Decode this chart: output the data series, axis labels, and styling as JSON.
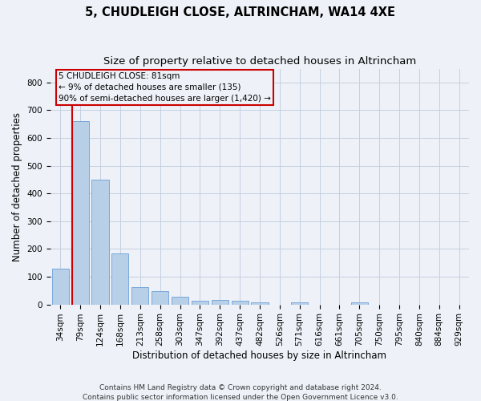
{
  "title": "5, CHUDLEIGH CLOSE, ALTRINCHAM, WA14 4XE",
  "subtitle": "Size of property relative to detached houses in Altrincham",
  "xlabel": "Distribution of detached houses by size in Altrincham",
  "ylabel": "Number of detached properties",
  "categories": [
    "34sqm",
    "79sqm",
    "124sqm",
    "168sqm",
    "213sqm",
    "258sqm",
    "303sqm",
    "347sqm",
    "392sqm",
    "437sqm",
    "482sqm",
    "526sqm",
    "571sqm",
    "616sqm",
    "661sqm",
    "705sqm",
    "750sqm",
    "795sqm",
    "840sqm",
    "884sqm",
    "929sqm"
  ],
  "values": [
    128,
    660,
    450,
    185,
    62,
    47,
    28,
    12,
    15,
    14,
    8,
    0,
    7,
    0,
    0,
    8,
    0,
    0,
    0,
    0,
    0
  ],
  "bar_color": "#b8cfe8",
  "bar_edge_color": "#6a9fd8",
  "annotation_box_text": "5 CHUDLEIGH CLOSE: 81sqm\n← 9% of detached houses are smaller (135)\n90% of semi-detached houses are larger (1,420) →",
  "ylim": [
    0,
    850
  ],
  "yticks": [
    0,
    100,
    200,
    300,
    400,
    500,
    600,
    700,
    800
  ],
  "red_line_color": "#cc0000",
  "box_edge_color": "#cc0000",
  "footer": "Contains HM Land Registry data © Crown copyright and database right 2024.\nContains public sector information licensed under the Open Government Licence v3.0.",
  "background_color": "#eef2f8",
  "grid_color": "#c5cfe0",
  "title_fontsize": 10.5,
  "subtitle_fontsize": 9.5,
  "axis_label_fontsize": 8.5,
  "tick_fontsize": 7.5,
  "annot_fontsize": 7.5,
  "footer_fontsize": 6.5
}
